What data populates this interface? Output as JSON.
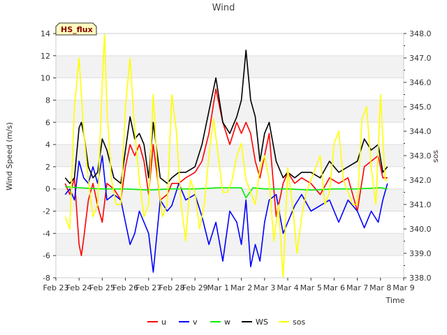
{
  "chart_data": {
    "type": "line",
    "title": "Wind",
    "badge": "HS_flux",
    "xlabel": "Time",
    "ylabel": "Wind Speed (m/s)",
    "y2label": "sos",
    "x_ticks": [
      "Feb 23",
      "Feb 24",
      "Feb 25",
      "Feb 26",
      "Feb 27",
      "Feb 28",
      "Feb 29",
      "Mar 1",
      "Mar 2",
      "Mar 3",
      "Mar 4",
      "Mar 5",
      "Mar 6",
      "Mar 7",
      "Mar 8",
      "Mar 9"
    ],
    "xlim": [
      0,
      15
    ],
    "ylim": [
      -8,
      14
    ],
    "y_ticks": [
      "-8",
      "-6",
      "-4",
      "-2",
      "0",
      "2",
      "4",
      "6",
      "8",
      "10",
      "12",
      "14"
    ],
    "y2lim": [
      338,
      348
    ],
    "y2_ticks": [
      "338.0",
      "339.0",
      "340.0",
      "341.0",
      "342.0",
      "343.0",
      "344.0",
      "345.0",
      "346.0",
      "347.0",
      "348.0"
    ],
    "legend_position": "bottom-center",
    "x_unit": "days since Feb 23",
    "series": [
      {
        "name": "u",
        "axis": "left",
        "color": "#ff0000",
        "x": [
          0.4,
          0.6,
          0.8,
          1.0,
          1.1,
          1.2,
          1.4,
          1.6,
          1.8,
          2.0,
          2.2,
          2.5,
          2.8,
          3.0,
          3.2,
          3.4,
          3.6,
          3.8,
          4.0,
          4.2,
          4.5,
          4.8,
          5.0,
          5.3,
          5.6,
          6.0,
          6.3,
          6.6,
          6.9,
          7.2,
          7.5,
          7.8,
          8.0,
          8.2,
          8.4,
          8.6,
          8.8,
          9.0,
          9.2,
          9.5,
          9.8,
          10.0,
          10.3,
          10.6,
          11.0,
          11.4,
          11.8,
          12.2,
          12.6,
          13.0,
          13.3,
          13.6,
          13.9,
          14.1,
          14.3
        ],
        "y": [
          0.5,
          -0.5,
          1.0,
          -5.0,
          -6.0,
          -4.5,
          -1.0,
          0.5,
          -1.5,
          -3.0,
          0.5,
          0.0,
          -1.0,
          2.0,
          4.0,
          3.0,
          4.0,
          2.5,
          -0.5,
          4.0,
          -1.0,
          -0.5,
          0.5,
          0.5,
          1.0,
          1.5,
          2.5,
          5.0,
          9.0,
          6.0,
          4.0,
          6.0,
          5.0,
          6.0,
          5.0,
          2.5,
          1.0,
          3.0,
          5.0,
          -2.5,
          0.5,
          1.5,
          0.5,
          1.0,
          0.5,
          -0.5,
          1.0,
          0.5,
          1.0,
          -2.0,
          2.0,
          2.5,
          3.0,
          1.0,
          1.0
        ]
      },
      {
        "name": "v",
        "axis": "left",
        "color": "#0000ff",
        "x": [
          0.4,
          0.6,
          0.8,
          1.0,
          1.2,
          1.4,
          1.6,
          1.8,
          2.0,
          2.2,
          2.5,
          2.8,
          3.0,
          3.2,
          3.4,
          3.6,
          3.8,
          4.0,
          4.2,
          4.5,
          4.8,
          5.0,
          5.3,
          5.6,
          6.0,
          6.3,
          6.6,
          6.9,
          7.2,
          7.5,
          7.8,
          8.0,
          8.2,
          8.4,
          8.6,
          8.8,
          9.0,
          9.2,
          9.5,
          9.8,
          10.0,
          10.3,
          10.6,
          11.0,
          11.4,
          11.8,
          12.2,
          12.6,
          13.0,
          13.3,
          13.6,
          13.9,
          14.1,
          14.3
        ],
        "y": [
          -0.5,
          0.0,
          -1.0,
          2.5,
          1.0,
          0.5,
          2.0,
          0.5,
          3.0,
          -1.0,
          -0.5,
          -1.0,
          -3.0,
          -5.0,
          -4.0,
          -2.0,
          -3.0,
          -4.0,
          -7.5,
          -1.0,
          -2.0,
          -1.5,
          0.5,
          -1.0,
          -0.5,
          -2.5,
          -5.0,
          -3.0,
          -6.5,
          -2.0,
          -3.0,
          -5.0,
          -1.0,
          -7.0,
          -5.0,
          -6.5,
          -3.0,
          -1.0,
          -0.5,
          -4.0,
          -3.0,
          -1.5,
          -0.5,
          -2.0,
          -1.5,
          -1.0,
          -3.0,
          -1.0,
          -2.0,
          -3.5,
          -2.0,
          -3.0,
          -1.0,
          0.5
        ]
      },
      {
        "name": "w",
        "axis": "left",
        "color": "#00ee00",
        "x": [
          0.4,
          1.0,
          2.0,
          3.0,
          4.0,
          5.0,
          6.0,
          7.0,
          8.0,
          8.2,
          8.5,
          9.0,
          10.0,
          11.0,
          12.0,
          13.0,
          14.0,
          14.3
        ],
        "y": [
          0.2,
          0.1,
          0.0,
          0.0,
          -0.1,
          0.0,
          0.0,
          0.1,
          0.1,
          -0.8,
          0.1,
          0.0,
          0.0,
          -0.1,
          0.0,
          0.0,
          0.1,
          0.0
        ]
      },
      {
        "name": "WS",
        "axis": "left",
        "color": "#000000",
        "x": [
          0.4,
          0.6,
          0.8,
          1.0,
          1.1,
          1.2,
          1.4,
          1.6,
          1.8,
          2.0,
          2.2,
          2.5,
          2.8,
          3.0,
          3.2,
          3.4,
          3.6,
          3.8,
          4.0,
          4.2,
          4.5,
          4.8,
          5.0,
          5.3,
          5.6,
          6.0,
          6.3,
          6.6,
          6.9,
          7.2,
          7.5,
          7.8,
          8.0,
          8.2,
          8.4,
          8.6,
          8.8,
          9.0,
          9.2,
          9.5,
          9.8,
          10.0,
          10.3,
          10.6,
          11.0,
          11.4,
          11.8,
          12.2,
          12.6,
          13.0,
          13.3,
          13.6,
          13.9,
          14.1,
          14.3
        ],
        "y": [
          1.0,
          0.5,
          1.0,
          5.5,
          6.0,
          5.0,
          2.0,
          1.0,
          1.5,
          4.5,
          3.5,
          1.0,
          0.5,
          3.5,
          6.5,
          4.5,
          5.0,
          4.0,
          1.0,
          6.0,
          1.0,
          0.5,
          1.0,
          1.5,
          1.5,
          2.0,
          4.0,
          7.0,
          10.0,
          6.0,
          5.0,
          6.5,
          8.0,
          12.5,
          8.0,
          6.5,
          2.5,
          5.0,
          6.0,
          2.5,
          1.0,
          1.5,
          1.0,
          1.5,
          1.5,
          1.0,
          2.5,
          1.5,
          2.0,
          2.5,
          4.5,
          3.5,
          4.0,
          1.5,
          2.0
        ]
      },
      {
        "name": "sos",
        "axis": "right",
        "color": "#ffff00",
        "x": [
          0.4,
          0.6,
          0.8,
          1.0,
          1.2,
          1.4,
          1.6,
          1.8,
          2.0,
          2.1,
          2.2,
          2.4,
          2.6,
          2.8,
          3.0,
          3.2,
          3.4,
          3.6,
          3.8,
          4.0,
          4.2,
          4.4,
          4.6,
          4.8,
          5.0,
          5.2,
          5.4,
          5.6,
          5.8,
          6.0,
          6.2,
          6.4,
          6.6,
          6.8,
          7.0,
          7.2,
          7.4,
          7.6,
          7.8,
          8.0,
          8.2,
          8.4,
          8.6,
          8.8,
          9.0,
          9.2,
          9.4,
          9.6,
          9.8,
          10.0,
          10.2,
          10.4,
          10.6,
          10.8,
          11.0,
          11.2,
          11.4,
          11.6,
          11.8,
          12.0,
          12.2,
          12.4,
          12.6,
          12.8,
          13.0,
          13.2,
          13.4,
          13.6,
          13.8,
          14.0,
          14.2,
          14.3
        ],
        "y": [
          340.5,
          340.0,
          345.0,
          347.0,
          344.0,
          342.0,
          340.5,
          341.0,
          346.0,
          348.0,
          345.0,
          342.0,
          341.0,
          341.0,
          345.0,
          347.0,
          344.0,
          342.0,
          340.5,
          341.0,
          345.5,
          342.0,
          340.5,
          341.0,
          345.5,
          344.0,
          341.0,
          339.5,
          342.0,
          341.5,
          340.0,
          341.0,
          343.0,
          344.5,
          343.0,
          341.5,
          341.5,
          342.0,
          343.0,
          343.5,
          342.0,
          341.5,
          341.0,
          342.5,
          343.0,
          342.0,
          339.5,
          341.0,
          338.0,
          342.5,
          341.0,
          339.0,
          340.5,
          341.5,
          342.0,
          342.5,
          343.0,
          341.0,
          341.5,
          343.5,
          344.0,
          342.0,
          341.5,
          341.0,
          341.0,
          344.5,
          345.0,
          342.5,
          341.0,
          345.5,
          342.0,
          342.0
        ]
      }
    ]
  }
}
